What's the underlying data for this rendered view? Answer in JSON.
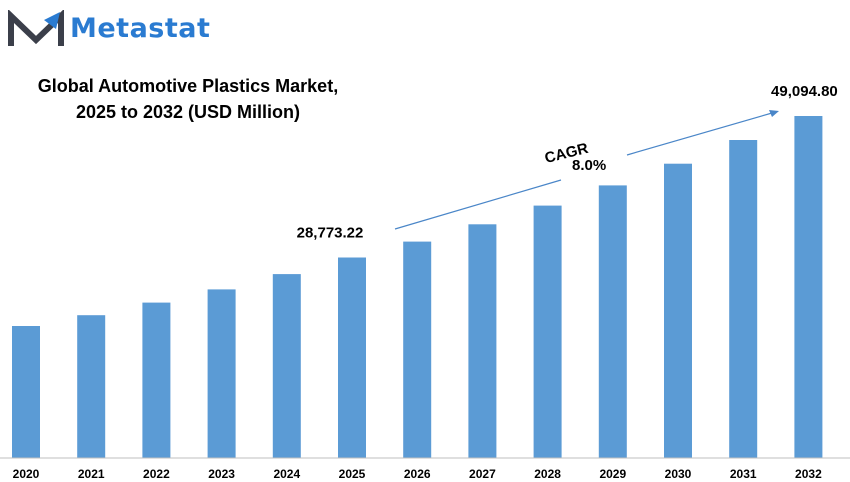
{
  "brand": {
    "name": "Metastat",
    "color": "#2a7bd1",
    "mark_color": "#3b3f4a"
  },
  "title_lines": [
    "Global Automotive Plastics Market,",
    "2025 to 2032 (USD Million)"
  ],
  "cagr": {
    "label": "CAGR",
    "value": "8.0%"
  },
  "chart_data": {
    "type": "bar",
    "categories": [
      "2020",
      "2021",
      "2022",
      "2023",
      "2024",
      "2025",
      "2026",
      "2027",
      "2028",
      "2029",
      "2030",
      "2031",
      "2032"
    ],
    "values": [
      18950,
      20500,
      22300,
      24200,
      26400,
      28773.22,
      31060,
      33540,
      36230,
      39130,
      42250,
      45640,
      49094.8
    ],
    "ylim": [
      0,
      60000
    ],
    "annotations": [
      {
        "category": "2025",
        "text": "28,773.22"
      },
      {
        "category": "2032",
        "text": "49,094.80"
      }
    ],
    "bar_color": "#5b9bd5",
    "grid": false,
    "legend": "none"
  }
}
